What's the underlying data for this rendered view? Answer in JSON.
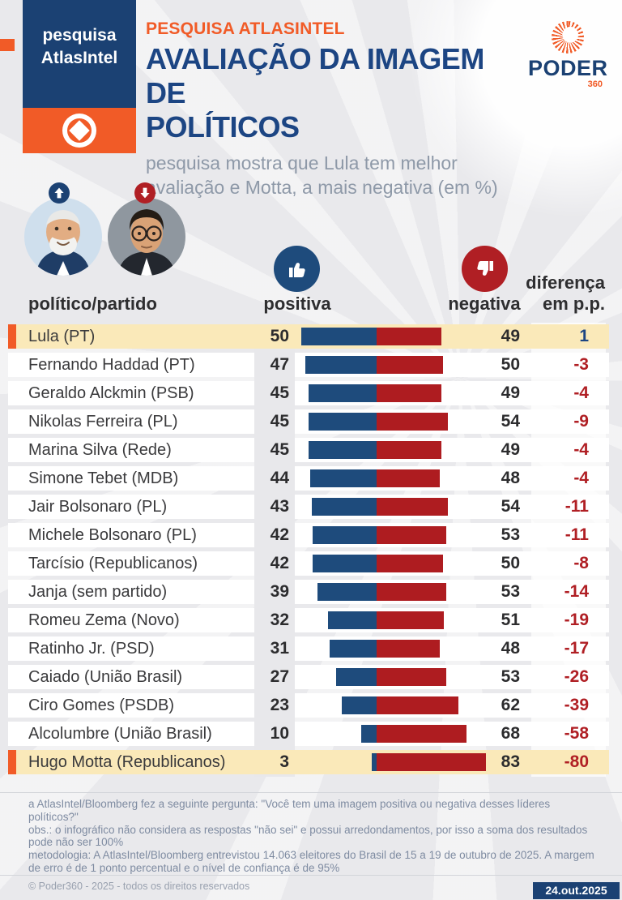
{
  "badge": {
    "line1": "pesquisa",
    "line2": "AtlasIntel"
  },
  "header": {
    "eyebrow": "PESQUISA ATLASINTEL",
    "title_line1": "AVALIAÇÃO DA IMAGEM DE",
    "title_line2": "POLÍTICOS",
    "subtitle_line1": "pesquisa mostra que Lula tem melhor",
    "subtitle_line2": "avaliação e Motta, a mais negativa (em %)"
  },
  "logo": {
    "word": "PODER",
    "suffix": "360"
  },
  "columns": {
    "politician": "político/partido",
    "positive": "positiva",
    "negative": "negativa",
    "diff_line1": "diferença",
    "diff_line2": "em p.p."
  },
  "rows": [
    {
      "name": "Lula (PT)",
      "positive": 50,
      "negative": 49,
      "diff": 1,
      "highlight": true
    },
    {
      "name": "Fernando Haddad (PT)",
      "positive": 47,
      "negative": 50,
      "diff": -3,
      "highlight": false
    },
    {
      "name": "Geraldo Alckmin (PSB)",
      "positive": 45,
      "negative": 49,
      "diff": -4,
      "highlight": false
    },
    {
      "name": "Nikolas Ferreira (PL)",
      "positive": 45,
      "negative": 54,
      "diff": -9,
      "highlight": false
    },
    {
      "name": "Marina Silva (Rede)",
      "positive": 45,
      "negative": 49,
      "diff": -4,
      "highlight": false
    },
    {
      "name": "Simone Tebet (MDB)",
      "positive": 44,
      "negative": 48,
      "diff": -4,
      "highlight": false
    },
    {
      "name": "Jair Bolsonaro (PL)",
      "positive": 43,
      "negative": 54,
      "diff": -11,
      "highlight": false
    },
    {
      "name": "Michele Bolsonaro (PL)",
      "positive": 42,
      "negative": 53,
      "diff": -11,
      "highlight": false
    },
    {
      "name": "Tarcísio (Republicanos)",
      "positive": 42,
      "negative": 50,
      "diff": -8,
      "highlight": false
    },
    {
      "name": "Janja (sem partido)",
      "positive": 39,
      "negative": 53,
      "diff": -14,
      "highlight": false
    },
    {
      "name": "Romeu Zema (Novo)",
      "positive": 32,
      "negative": 51,
      "diff": -19,
      "highlight": false
    },
    {
      "name": "Ratinho Jr. (PSD)",
      "positive": 31,
      "negative": 48,
      "diff": -17,
      "highlight": false
    },
    {
      "name": "Caiado (União Brasil)",
      "positive": 27,
      "negative": 53,
      "diff": -26,
      "highlight": false
    },
    {
      "name": "Ciro Gomes (PSDB)",
      "positive": 23,
      "negative": 62,
      "diff": -39,
      "highlight": false
    },
    {
      "name": "Alcolumbre (União Brasil)",
      "positive": 10,
      "negative": 68,
      "diff": -58,
      "highlight": false
    },
    {
      "name": "Hugo Motta (Republicanos)",
      "positive": 3,
      "negative": 83,
      "diff": -80,
      "highlight": true
    }
  ],
  "chart_data": {
    "type": "bar",
    "title": "AVALIAÇÃO DA IMAGEM DE POLÍTICOS (em %)",
    "categories": [
      "Lula (PT)",
      "Fernando Haddad (PT)",
      "Geraldo Alckmin (PSB)",
      "Nikolas Ferreira (PL)",
      "Marina Silva (Rede)",
      "Simone Tebet (MDB)",
      "Jair Bolsonaro (PL)",
      "Michele Bolsonaro (PL)",
      "Tarcísio (Republicanos)",
      "Janja (sem partido)",
      "Romeu Zema (Novo)",
      "Ratinho Jr. (PSD)",
      "Caiado (União Brasil)",
      "Ciro Gomes (PSDB)",
      "Alcolumbre (União Brasil)",
      "Hugo Motta (Republicanos)"
    ],
    "series": [
      {
        "name": "positiva",
        "values": [
          50,
          47,
          45,
          45,
          45,
          44,
          43,
          42,
          42,
          39,
          32,
          31,
          27,
          23,
          10,
          3
        ]
      },
      {
        "name": "negativa",
        "values": [
          49,
          50,
          49,
          54,
          49,
          48,
          54,
          53,
          50,
          53,
          51,
          48,
          53,
          62,
          68,
          83
        ]
      },
      {
        "name": "diferença em p.p.",
        "values": [
          1,
          -3,
          -4,
          -9,
          -4,
          -4,
          -11,
          -11,
          -8,
          -14,
          -19,
          -17,
          -26,
          -39,
          -58,
          -80
        ]
      }
    ],
    "layout": "horizontal diverging stacked bars, blue=positiva left of fixed divider, red=negativa right of divider, grid off, no axes"
  },
  "footnotes": [
    "a AtlasIntel/Bloomberg fez a seguinte pergunta: \"Você tem uma imagem positiva ou negativa desses líderes políticos?\"",
    "obs.: o infográfico não considera as respostas \"não sei\" e possui arredondamentos, por isso a soma dos resultados pode não ser 100%",
    "metodologia: A AtlasIntel/Bloomberg entrevistou 14.063 eleitores do Brasil de 15 a 19 de outubro de 2025. A margem de erro é de 1 ponto percentual e o nível de confiança é de 95%"
  ],
  "copyright": "© Poder360 - 2025 - todos os direitos reservados",
  "date": "24.out.2025",
  "colors": {
    "navy": "#1c4583",
    "orange": "#f15b27",
    "bar_blue": "#1e4b7c",
    "bar_red": "#ae1c20",
    "highlight_row": "#fae9b9",
    "diff_positive": "#1c4583",
    "diff_negative": "#b01f24",
    "page_bg": "#e9e9ec"
  }
}
